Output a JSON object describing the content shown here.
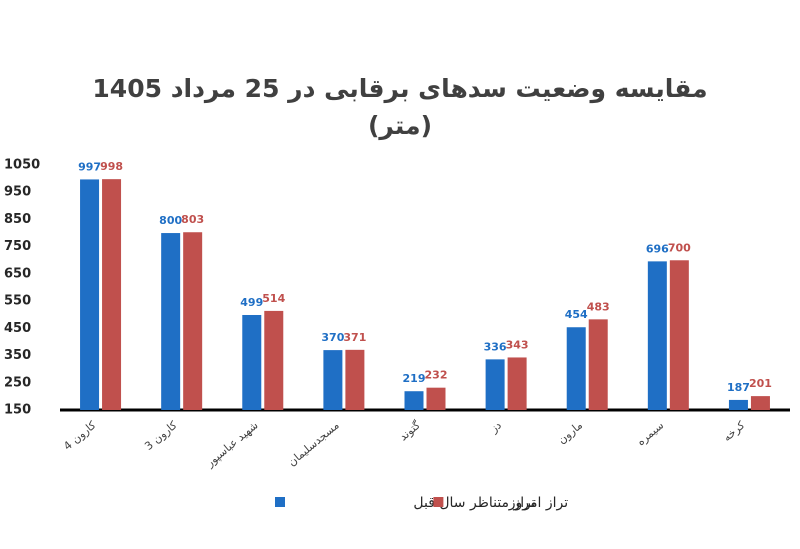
{
  "chart_data": {
    "type": "bar",
    "title": "مقایسه وضعیت سدهای برقابی در 25 مرداد 1405",
    "subtitle": "(متر)",
    "categories": [
      "کارون 4",
      "کارون 3",
      "شهید عباسپور",
      "مسجدسلیمان",
      "گتوند",
      "دز",
      "مارون",
      "سیمره",
      "کرخه"
    ],
    "series": [
      {
        "name": "تراز متناظر سال قبل",
        "color": "#1f6fc5",
        "values": [
          997,
          800,
          499,
          370,
          219,
          336,
          454,
          696,
          187
        ]
      },
      {
        "name": "تراز امروز",
        "color": "#c0504d",
        "values": [
          998,
          803,
          514,
          371,
          232,
          343,
          483,
          700,
          201
        ]
      }
    ],
    "ylim": [
      150,
      1050
    ],
    "yticks": [
      150,
      250,
      350,
      450,
      550,
      650,
      750,
      850,
      950,
      1050
    ],
    "grid": false,
    "legend": "bottom"
  }
}
